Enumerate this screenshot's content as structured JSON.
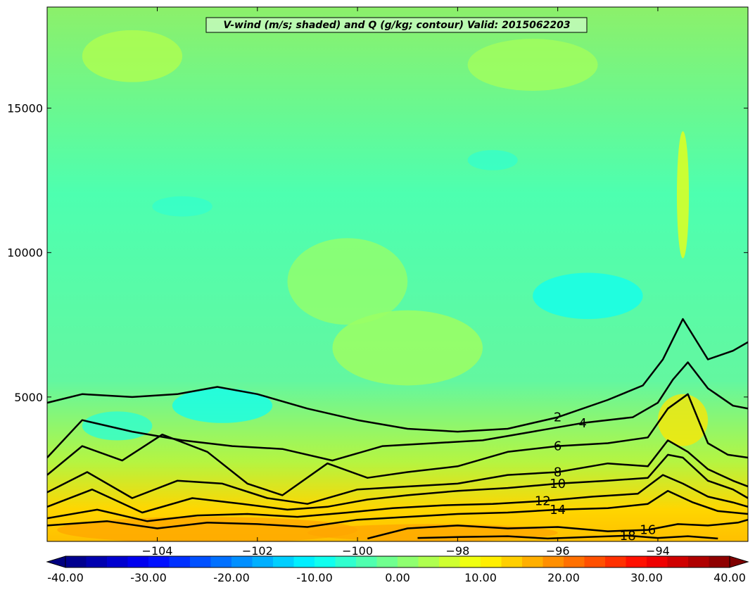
{
  "chart_data": {
    "type": "filled-contour",
    "title": "V-wind (m/s; shaded) and Q (g/kg; contour) Valid: 2015062203",
    "xlabel": "",
    "ylabel": "",
    "xlim": [
      -106.2,
      -92.2
    ],
    "ylim": [
      0,
      18500
    ],
    "x_ticks": [
      -104,
      -102,
      -100,
      -98,
      -96,
      -94
    ],
    "x_tick_labels": [
      "−104",
      "−102",
      "−100",
      "−98",
      "−96",
      "−94"
    ],
    "y_ticks": [
      5000,
      10000,
      15000
    ],
    "y_tick_labels": [
      "5000",
      "10000",
      "15000"
    ],
    "shaded_field": "V-wind (m/s)",
    "contour_field": "Q (g/kg)",
    "colorbar": {
      "min": -40,
      "max": 40,
      "step": 2.5,
      "tick_values": [
        -40,
        -30,
        -20,
        -10,
        0,
        10,
        20,
        30,
        40
      ],
      "tick_labels": [
        "-40.00",
        "-30.00",
        "-20.00",
        "-10.00",
        "0.00",
        "10.00",
        "20.00",
        "30.00",
        "40.00"
      ],
      "colormap": "jet",
      "extend": "both"
    },
    "contours": [
      {
        "level": 2,
        "label": "2",
        "x": [
          -106.2,
          -105.5,
          -104.5,
          -103.6,
          -102.8,
          -102.0,
          -101.0,
          -100.0,
          -99.0,
          -98.0,
          -97.0,
          -96.0,
          -95.0,
          -94.3,
          -93.9,
          -93.5,
          -93.0,
          -92.5,
          -92.2
        ],
        "y": [
          4800,
          5100,
          5000,
          5100,
          5350,
          5100,
          4600,
          4200,
          3900,
          3800,
          3900,
          4300,
          4900,
          5400,
          6300,
          7700,
          6300,
          6600,
          6900
        ]
      },
      {
        "level": 4,
        "label": "4",
        "x": [
          -106.2,
          -105.5,
          -104.5,
          -103.5,
          -102.5,
          -101.5,
          -100.5,
          -99.5,
          -98.5,
          -97.5,
          -96.5,
          -95.5,
          -94.5,
          -94.0,
          -93.7,
          -93.4,
          -93.0,
          -92.5,
          -92.2
        ],
        "y": [
          2900,
          4200,
          3800,
          3500,
          3300,
          3200,
          2800,
          3300,
          3400,
          3500,
          3800,
          4100,
          4300,
          4800,
          5600,
          6200,
          5300,
          4700,
          4600
        ]
      },
      {
        "level": 6,
        "label": "6",
        "x": [
          -106.2,
          -105.5,
          -104.7,
          -103.9,
          -103.0,
          -102.2,
          -101.5,
          -100.6,
          -99.8,
          -99.0,
          -98.0,
          -97.0,
          -96.0,
          -95.0,
          -94.2,
          -93.8,
          -93.4,
          -93.0,
          -92.6,
          -92.2
        ],
        "y": [
          2300,
          3300,
          2800,
          3700,
          3100,
          2000,
          1600,
          2700,
          2200,
          2400,
          2600,
          3100,
          3300,
          3400,
          3600,
          4600,
          5100,
          3400,
          3000,
          2900
        ]
      },
      {
        "level": 8,
        "label": "8",
        "x": [
          -106.2,
          -105.4,
          -104.5,
          -103.6,
          -102.7,
          -101.8,
          -101.0,
          -100.0,
          -99.0,
          -98.0,
          -97.0,
          -96.0,
          -95.0,
          -94.2,
          -93.8,
          -93.4,
          -93.0,
          -92.5,
          -92.2
        ],
        "y": [
          1700,
          2400,
          1500,
          2100,
          2000,
          1500,
          1300,
          1800,
          1900,
          2000,
          2300,
          2400,
          2700,
          2600,
          3500,
          3100,
          2500,
          2100,
          1900
        ]
      },
      {
        "level": 10,
        "label": "10",
        "x": [
          -106.2,
          -105.3,
          -104.3,
          -103.3,
          -102.3,
          -101.4,
          -100.6,
          -99.8,
          -99.0,
          -98.0,
          -97.0,
          -96.0,
          -95.0,
          -94.2,
          -93.8,
          -93.5,
          -93.0,
          -92.5,
          -92.2
        ],
        "y": [
          1200,
          1800,
          1000,
          1500,
          1300,
          1100,
          1200,
          1450,
          1600,
          1750,
          1850,
          2000,
          2100,
          2200,
          3000,
          2900,
          2100,
          1800,
          1500
        ]
      },
      {
        "level": 12,
        "label": "12",
        "x": [
          -106.2,
          -105.2,
          -104.2,
          -103.2,
          -102.2,
          -101.2,
          -100.2,
          -99.3,
          -98.3,
          -97.3,
          -96.3,
          -95.3,
          -94.4,
          -93.9,
          -93.5,
          -93.0,
          -92.5,
          -92.2
        ],
        "y": [
          800,
          1100,
          700,
          900,
          950,
          850,
          1000,
          1150,
          1250,
          1300,
          1400,
          1550,
          1650,
          2300,
          2000,
          1550,
          1350,
          1200
        ]
      },
      {
        "level": 14,
        "label": "14",
        "x": [
          -106.2,
          -105.0,
          -104.0,
          -103.0,
          -102.0,
          -101.0,
          -100.0,
          -99.0,
          -98.0,
          -97.0,
          -96.0,
          -95.0,
          -94.2,
          -93.8,
          -93.3,
          -92.8,
          -92.2
        ],
        "y": [
          550,
          700,
          450,
          650,
          600,
          500,
          750,
          850,
          950,
          1000,
          1100,
          1150,
          1300,
          1750,
          1350,
          1050,
          950
        ]
      },
      {
        "level": 16,
        "label": "16",
        "x": [
          -99.8,
          -99.0,
          -98.0,
          -97.0,
          -96.0,
          -95.0,
          -94.2,
          -93.6,
          -93.0,
          -92.4,
          -92.2
        ],
        "y": [
          100,
          450,
          550,
          450,
          500,
          350,
          400,
          600,
          550,
          650,
          750
        ]
      },
      {
        "level": 18,
        "label": "18",
        "x": [
          -98.8,
          -98.0,
          -97.0,
          -96.2,
          -95.4,
          -94.6,
          -94.0,
          -93.4,
          -92.8
        ],
        "y": [
          120,
          150,
          180,
          100,
          150,
          200,
          120,
          180,
          100
        ]
      }
    ],
    "grid": false,
    "legend": "none"
  }
}
